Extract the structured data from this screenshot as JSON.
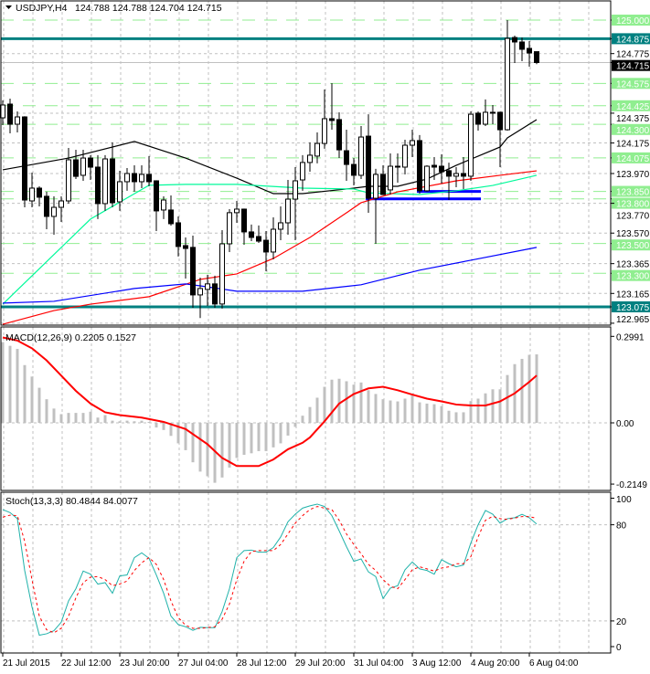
{
  "header": {
    "collapse_icon": "triangle-down-icon",
    "symbol": "USDJPY,H4",
    "ohlc": "124.788 124.788 124.704 124.715"
  },
  "colors": {
    "level_green": "#90ee90",
    "teal_level": "#008080",
    "ma_black": "#000000",
    "ma_green": "#00fa9a",
    "ma_red": "#ff0000",
    "ma_blue": "#0000ff",
    "histogram": "#c0c0c0",
    "signal": "#ff0000",
    "stoch_main": "#20b2aa",
    "stoch_signal": "#ff0000"
  },
  "price_axis": {
    "ticks": [
      "124.775",
      "124.375",
      "124.175",
      "123.970",
      "123.770",
      "123.570",
      "123.365",
      "123.165",
      "122.965"
    ],
    "current_price": "124.715"
  },
  "levels": {
    "green": [
      "125.000",
      "124.575",
      "124.425",
      "124.300",
      "124.075",
      "123.850",
      "123.800",
      "123.500",
      "123.300"
    ],
    "teal": [
      "124.875",
      "123.075"
    ]
  },
  "chart_data": [
    {
      "type": "candlestick",
      "title": "USDJPY,H4",
      "ylim": [
        122.94,
        125.13
      ],
      "candles": [
        [
          124.344,
          124.461,
          124.295,
          124.43
        ],
        [
          124.436,
          124.473,
          124.24,
          124.301
        ],
        [
          124.301,
          124.387,
          124.246,
          124.35
        ],
        [
          124.35,
          124.355,
          123.743,
          123.792
        ],
        [
          123.786,
          123.976,
          123.743,
          123.872
        ],
        [
          123.872,
          123.884,
          123.749,
          123.811
        ],
        [
          123.817,
          123.848,
          123.596,
          123.682
        ],
        [
          123.682,
          123.817,
          123.559,
          123.743
        ],
        [
          123.743,
          123.817,
          123.645,
          123.786
        ],
        [
          123.786,
          124.142,
          123.768,
          124.062
        ],
        [
          124.062,
          124.129,
          123.933,
          123.951
        ],
        [
          123.958,
          124.129,
          123.921,
          124.074
        ],
        [
          124.074,
          124.093,
          123.927,
          124.013
        ],
        [
          124.013,
          124.093,
          123.664,
          123.768
        ],
        [
          123.768,
          124.093,
          123.719,
          124.068
        ],
        [
          124.068,
          124.179,
          123.743,
          123.774
        ],
        [
          123.78,
          123.988,
          123.719,
          123.915
        ],
        [
          123.915,
          124.007,
          123.854,
          123.97
        ],
        [
          123.97,
          124.025,
          123.848,
          123.915
        ],
        [
          123.915,
          124.025,
          123.872,
          123.964
        ],
        [
          123.964,
          124.087,
          123.884,
          123.915
        ],
        [
          123.921,
          123.925,
          123.584,
          123.719
        ],
        [
          123.725,
          123.817,
          123.664,
          123.792
        ],
        [
          123.725,
          123.823,
          123.62,
          123.633
        ],
        [
          123.639,
          123.682,
          123.413,
          123.48
        ],
        [
          123.486,
          123.541,
          123.265,
          123.467
        ],
        [
          123.474,
          123.553,
          123.069,
          123.155
        ],
        [
          123.155,
          123.271,
          123.0,
          123.198
        ],
        [
          123.192,
          123.29,
          123.081,
          123.229
        ],
        [
          123.229,
          123.284,
          123.069,
          123.094
        ],
        [
          123.094,
          123.59,
          123.063,
          123.498
        ],
        [
          123.498,
          123.731,
          123.443,
          123.707
        ],
        [
          123.707,
          123.786,
          123.639,
          123.731
        ],
        [
          123.731,
          123.735,
          123.492,
          123.578
        ],
        [
          123.578,
          123.627,
          123.516,
          123.541
        ],
        [
          123.547,
          123.621,
          123.504,
          123.516
        ],
        [
          123.522,
          123.584,
          123.314,
          123.443
        ],
        [
          123.443,
          123.676,
          123.394,
          123.596
        ],
        [
          123.596,
          123.749,
          123.522,
          123.639
        ],
        [
          123.639,
          123.927,
          123.559,
          123.798
        ],
        [
          123.798,
          124.013,
          123.522,
          123.921
        ],
        [
          123.927,
          124.093,
          123.854,
          124.044
        ],
        [
          124.044,
          124.179,
          123.982,
          124.093
        ],
        [
          124.087,
          124.246,
          124.038,
          124.172
        ],
        [
          124.172,
          124.534,
          124.136,
          124.338
        ],
        [
          124.338,
          124.577,
          124.264,
          124.326
        ],
        [
          124.332,
          124.381,
          124.074,
          124.129
        ],
        [
          124.123,
          124.264,
          123.921,
          124.031
        ],
        [
          124.031,
          124.074,
          123.89,
          123.958
        ],
        [
          123.958,
          124.289,
          123.933,
          124.215
        ],
        [
          124.221,
          124.368,
          123.706,
          123.804
        ],
        [
          123.804,
          124.001,
          123.498,
          123.964
        ],
        [
          123.964,
          124.025,
          123.825,
          123.829
        ],
        [
          123.86,
          124.105,
          123.829,
          124.019
        ],
        [
          124.019,
          124.105,
          123.909,
          124.013
        ],
        [
          124.013,
          124.197,
          123.964,
          124.16
        ],
        [
          124.16,
          124.264,
          124.08,
          124.191
        ],
        [
          124.191,
          124.228,
          123.835,
          123.854
        ],
        [
          123.854,
          124.025,
          123.848,
          124.019
        ],
        [
          124.025,
          124.08,
          123.927,
          124.013
        ],
        [
          124.019,
          124.099,
          123.903,
          123.982
        ],
        [
          123.989,
          124.043,
          123.792,
          123.952
        ],
        [
          123.952,
          124.013,
          123.878,
          123.97
        ],
        [
          123.97,
          124.08,
          123.866,
          123.952
        ],
        [
          123.952,
          124.387,
          123.921,
          124.368
        ],
        [
          124.375,
          124.387,
          124.258,
          124.301
        ],
        [
          124.301,
          124.467,
          124.289,
          124.381
        ],
        [
          124.381,
          124.43,
          124.301,
          124.375
        ],
        [
          124.381,
          124.385,
          124.013,
          124.264
        ],
        [
          124.264,
          125.0,
          124.258,
          124.877
        ],
        [
          124.883,
          124.896,
          124.712,
          124.853
        ],
        [
          124.853,
          124.883,
          124.724,
          124.804
        ],
        [
          124.81,
          124.859,
          124.687,
          124.779
        ],
        [
          124.788,
          124.788,
          124.704,
          124.715
        ]
      ],
      "moving_averages": [
        {
          "color": "black",
          "points": [
            [
              1,
              123.995
            ],
            [
              10,
              124.074
            ],
            [
              19,
              124.185
            ],
            [
              26,
              124.074
            ],
            [
              33,
              123.939
            ],
            [
              38,
              123.835
            ],
            [
              42,
              123.835
            ],
            [
              48,
              123.866
            ],
            [
              51,
              123.884
            ],
            [
              55,
              123.884
            ],
            [
              59,
              123.933
            ],
            [
              63,
              124.025
            ],
            [
              69,
              124.148
            ],
            [
              70,
              124.209
            ],
            [
              74,
              124.332
            ]
          ]
        },
        {
          "color": "green",
          "points": [
            [
              1,
              123.093
            ],
            [
              13,
              123.664
            ],
            [
              21,
              123.891
            ],
            [
              26,
              123.897
            ],
            [
              33,
              123.897
            ],
            [
              42,
              123.872
            ],
            [
              49,
              123.866
            ],
            [
              51,
              123.84
            ],
            [
              58,
              123.829
            ],
            [
              63,
              123.854
            ],
            [
              68,
              123.89
            ],
            [
              74,
              123.958
            ]
          ]
        },
        {
          "color": "red",
          "points": [
            [
              1,
              122.958
            ],
            [
              8,
              123.05
            ],
            [
              13,
              123.093
            ],
            [
              21,
              123.143
            ],
            [
              28,
              123.259
            ],
            [
              33,
              123.296
            ],
            [
              38,
              123.4
            ],
            [
              43,
              123.541
            ],
            [
              48,
              123.706
            ],
            [
              50,
              123.774
            ],
            [
              55,
              123.847
            ],
            [
              63,
              123.921
            ],
            [
              69,
              123.958
            ],
            [
              74,
              123.988
            ]
          ]
        },
        {
          "color": "blue",
          "points": [
            [
              1,
              123.1
            ],
            [
              8,
              123.112
            ],
            [
              19,
              123.198
            ],
            [
              26,
              123.229
            ],
            [
              28,
              123.216
            ],
            [
              33,
              123.18
            ],
            [
              42,
              123.18
            ],
            [
              50,
              123.223
            ],
            [
              58,
              123.321
            ],
            [
              65,
              123.388
            ],
            [
              74,
              123.474
            ]
          ]
        }
      ],
      "support_segments": [
        {
          "price": 123.85,
          "from_bar": 58,
          "to_bar": 66
        },
        {
          "price": 123.8,
          "from_bar": 51,
          "to_bar": 66
        }
      ]
    },
    {
      "type": "bar",
      "title": "MACD(12,26,9)",
      "label": "MACD(12,26,9) 0.2205 0.1527",
      "ylim": [
        -0.2149,
        0.2991
      ],
      "ticks": [
        "0.2991",
        "0.00",
        "-0.2149"
      ],
      "histogram": [
        0.26,
        0.248,
        0.238,
        0.186,
        0.149,
        0.113,
        0.076,
        0.046,
        0.028,
        0.032,
        0.032,
        0.032,
        0.036,
        0.017,
        0.025,
        0.007,
        0.005,
        0.007,
        0.005,
        0.007,
        0.003,
        -0.015,
        -0.023,
        -0.042,
        -0.066,
        -0.088,
        -0.127,
        -0.157,
        -0.172,
        -0.193,
        -0.176,
        -0.144,
        -0.113,
        -0.103,
        -0.098,
        -0.091,
        -0.091,
        -0.079,
        -0.066,
        -0.041,
        -0.013,
        0.023,
        0.051,
        0.081,
        0.116,
        0.139,
        0.142,
        0.134,
        0.123,
        0.13,
        0.105,
        0.093,
        0.076,
        0.072,
        0.069,
        0.078,
        0.088,
        0.066,
        0.062,
        0.06,
        0.054,
        0.039,
        0.034,
        0.034,
        0.07,
        0.078,
        0.095,
        0.108,
        0.108,
        0.154,
        0.189,
        0.206,
        0.219,
        0.2205
      ],
      "signal": [
        [
          1,
          0.275
        ],
        [
          3,
          0.265
        ],
        [
          5,
          0.24
        ],
        [
          7,
          0.201
        ],
        [
          9,
          0.152
        ],
        [
          11,
          0.103
        ],
        [
          13,
          0.062
        ],
        [
          15,
          0.034
        ],
        [
          17,
          0.025
        ],
        [
          20,
          0.017
        ],
        [
          23,
          0.003
        ],
        [
          26,
          -0.02
        ],
        [
          29,
          -0.069
        ],
        [
          31,
          -0.113
        ],
        [
          33,
          -0.139
        ],
        [
          36,
          -0.139
        ],
        [
          38,
          -0.118
        ],
        [
          40,
          -0.085
        ],
        [
          42,
          -0.064
        ],
        [
          43,
          -0.047
        ],
        [
          45,
          0.005
        ],
        [
          47,
          0.062
        ],
        [
          49,
          0.093
        ],
        [
          51,
          0.111
        ],
        [
          53,
          0.116
        ],
        [
          55,
          0.105
        ],
        [
          57,
          0.091
        ],
        [
          59,
          0.078
        ],
        [
          61,
          0.069
        ],
        [
          63,
          0.059
        ],
        [
          65,
          0.056
        ],
        [
          67,
          0.056
        ],
        [
          69,
          0.069
        ],
        [
          71,
          0.095
        ],
        [
          73,
          0.132
        ],
        [
          74,
          0.1527
        ]
      ]
    },
    {
      "type": "line",
      "title": "Stoch(13,3,3)",
      "label": "Stoch(13,3,3) 80.4844 84.0077",
      "ylim": [
        0,
        100
      ],
      "ticks": [
        "100",
        "80",
        "20",
        "0"
      ],
      "main": [
        89.5,
        87.6,
        83.8,
        51.5,
        28.7,
        11.1,
        12.0,
        13.9,
        19.2,
        32.5,
        40.1,
        51.1,
        49.2,
        43.0,
        43.9,
        37.3,
        48.1,
        48.7,
        59.5,
        62.5,
        59.1,
        48.7,
        37.3,
        23.0,
        17.7,
        16.4,
        14.1,
        16.0,
        15.8,
        15.8,
        25.9,
        40.1,
        59.5,
        63.9,
        64.2,
        62.9,
        62.9,
        65.8,
        72.4,
        81.9,
        86.6,
        90.4,
        91.8,
        92.9,
        91.4,
        85.7,
        76.2,
        66.3,
        57.2,
        58.7,
        50.6,
        47.7,
        34.0,
        40.5,
        42.0,
        51.9,
        56.8,
        52.5,
        51.5,
        49.2,
        58.2,
        55.7,
        53.8,
        54.9,
        68.6,
        80.0,
        88.9,
        86.6,
        81.0,
        83.8,
        84.4,
        86.5,
        84.4,
        80.48
      ],
      "signal": [
        84.7,
        86.0,
        85.7,
        69.6,
        45.8,
        23.0,
        14.5,
        12.6,
        15.4,
        23.0,
        34.4,
        43.9,
        47.3,
        47.7,
        45.8,
        42.0,
        43.0,
        44.9,
        51.5,
        56.3,
        59.5,
        55.3,
        45.8,
        32.5,
        22.1,
        17.3,
        15.4,
        15.4,
        15.8,
        16.4,
        21.1,
        30.6,
        45.8,
        57.2,
        63.3,
        63.9,
        63.9,
        63.9,
        67.7,
        74.3,
        81.0,
        85.7,
        89.5,
        91.4,
        90.4,
        89.5,
        82.8,
        74.3,
        67.7,
        62.0,
        55.3,
        51.5,
        45.8,
        41.6,
        40.1,
        45.8,
        51.9,
        53.8,
        52.5,
        51.1,
        53.0,
        53.8,
        55.7,
        55.7,
        60.1,
        72.4,
        82.8,
        85.3,
        83.8,
        83.4,
        84.2,
        85.1,
        85.1,
        84.01
      ]
    }
  ],
  "time_axis": {
    "labels": [
      "21 Jul 2015",
      "22 Jul 12:00",
      "23 Jul 20:00",
      "27 Jul 04:00",
      "28 Jul 12:00",
      "29 Jul 20:00",
      "31 Jul 04:00",
      "3 Aug 12:00",
      "4 Aug 20:00",
      "6 Aug 04:00"
    ]
  }
}
